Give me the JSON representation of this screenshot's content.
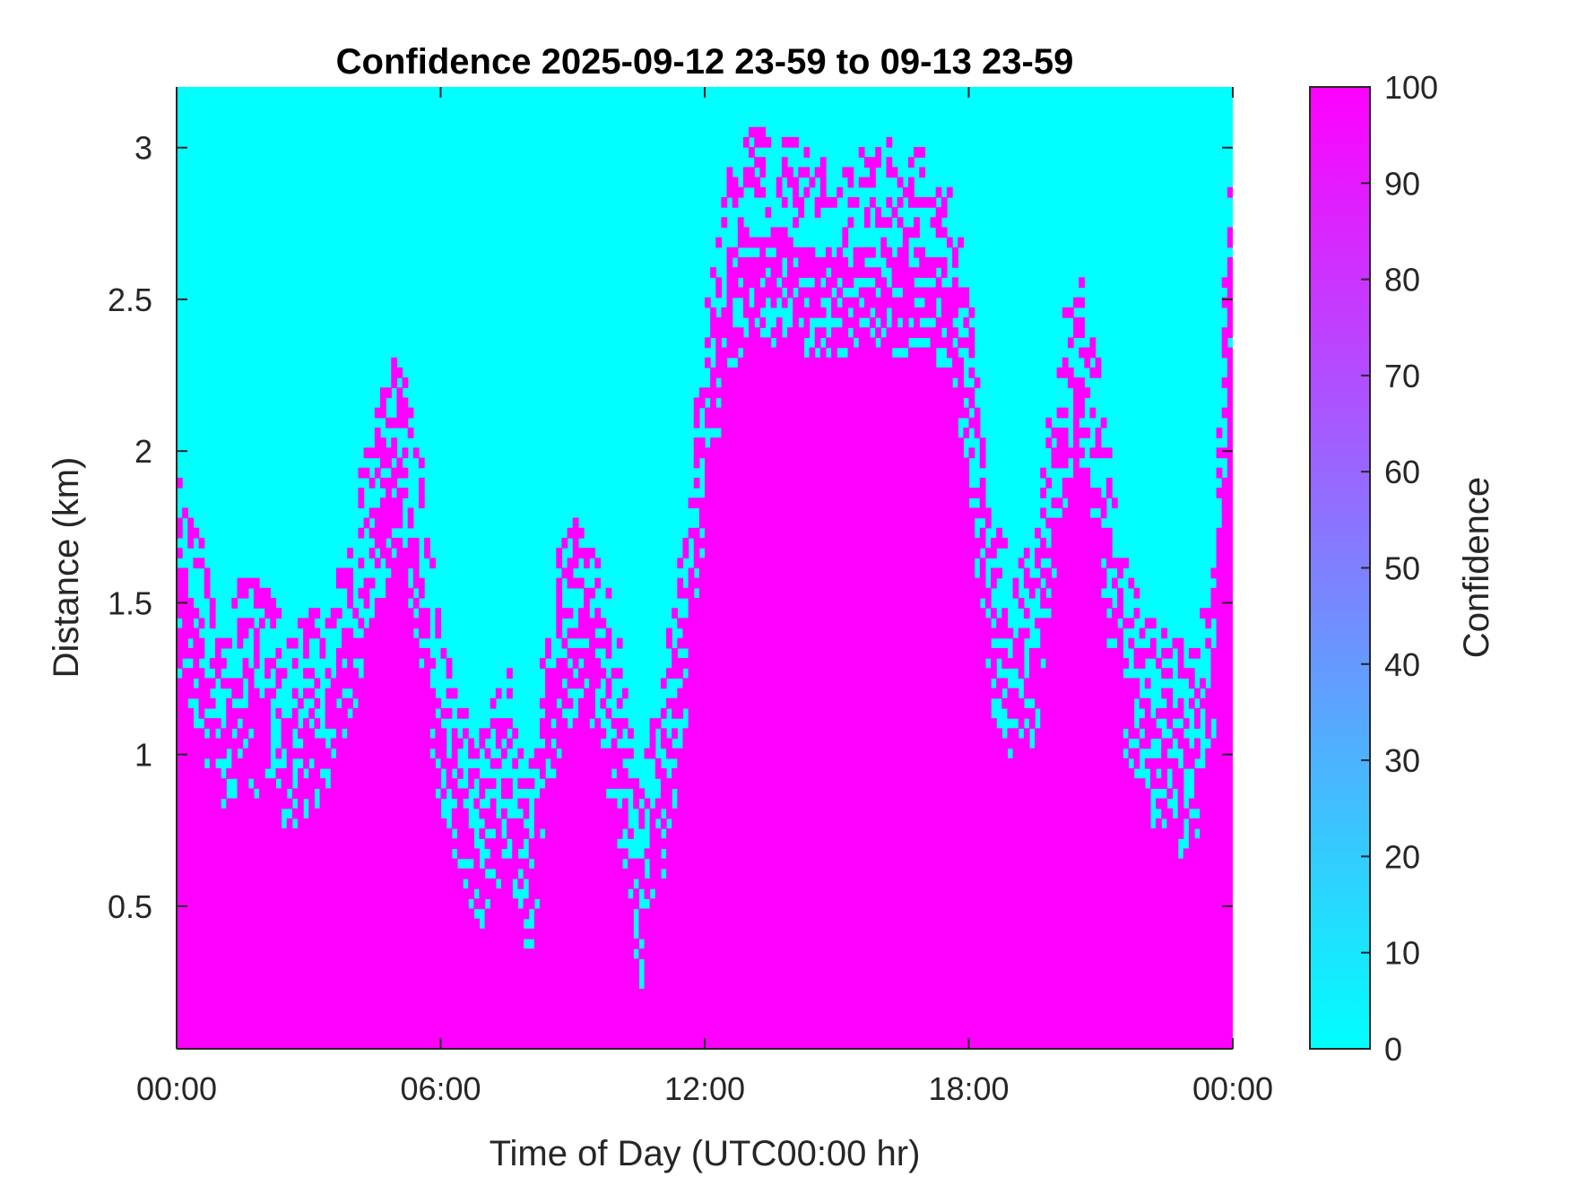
{
  "chart_data": {
    "type": "heatmap",
    "title": "Confidence 2025-09-12 23-59 to 09-13 23-59",
    "xlabel": "Time of Day (UTC00:00 hr)",
    "ylabel": "Distance (km)",
    "colorbar_label": "Confidence",
    "x_unit": "hours of day",
    "xlim": [
      0,
      24
    ],
    "ylim": [
      0.03,
      3.2
    ],
    "x_ticks": [
      {
        "value": 0,
        "label": "00:00"
      },
      {
        "value": 6,
        "label": "06:00"
      },
      {
        "value": 12,
        "label": "12:00"
      },
      {
        "value": 18,
        "label": "18:00"
      },
      {
        "value": 24,
        "label": "00:00"
      }
    ],
    "y_ticks": [
      {
        "value": 0.5,
        "label": "0.5"
      },
      {
        "value": 1,
        "label": "1"
      },
      {
        "value": 1.5,
        "label": "1.5"
      },
      {
        "value": 2,
        "label": "2"
      },
      {
        "value": 2.5,
        "label": "2.5"
      },
      {
        "value": 3,
        "label": "3"
      }
    ],
    "colorbar": {
      "clim": [
        0,
        100
      ],
      "ticks": [
        0,
        10,
        20,
        30,
        40,
        50,
        60,
        70,
        80,
        90,
        100
      ],
      "tick_labels": [
        "0",
        "10",
        "20",
        "30",
        "40",
        "50",
        "60",
        "70",
        "80",
        "90",
        "100"
      ],
      "colormap": "cool",
      "low_color": "#00ffff",
      "high_color": "#ff00ff"
    },
    "values_present": [
      0,
      100
    ],
    "high_confidence_top_km": {
      "hours": [
        0,
        0.5,
        1,
        1.5,
        2,
        2.5,
        3,
        3.5,
        4,
        4.5,
        5,
        5.5,
        6,
        6.5,
        7,
        7.5,
        8,
        8.5,
        9,
        9.5,
        10,
        10.5,
        11,
        11.5,
        12,
        12.5,
        13,
        13.5,
        14,
        14.5,
        15,
        15.5,
        16,
        16.5,
        17,
        17.5,
        18,
        18.5,
        19,
        19.5,
        20,
        20.5,
        21,
        21.5,
        22,
        22.5,
        23,
        23.5,
        24
      ],
      "distance_km": [
        1.6,
        1.4,
        1.15,
        1.25,
        1.2,
        1.1,
        1.15,
        1.25,
        1.45,
        1.8,
        2.0,
        1.7,
        1.1,
        0.9,
        0.75,
        1.0,
        0.6,
        1.25,
        1.45,
        1.35,
        1.1,
        0.55,
        0.9,
        1.35,
        2.1,
        2.55,
        2.72,
        2.7,
        2.68,
        2.66,
        2.64,
        2.66,
        2.67,
        2.67,
        2.65,
        2.58,
        2.2,
        1.5,
        1.3,
        1.35,
        2.0,
        2.3,
        1.9,
        1.35,
        1.15,
        1.05,
        1.0,
        1.2,
        2.85
      ]
    }
  },
  "colors": {
    "background": "#ffffff",
    "axis": "#262626",
    "colorbar_low": "#00ffff",
    "colorbar_high": "#ff00ff"
  }
}
